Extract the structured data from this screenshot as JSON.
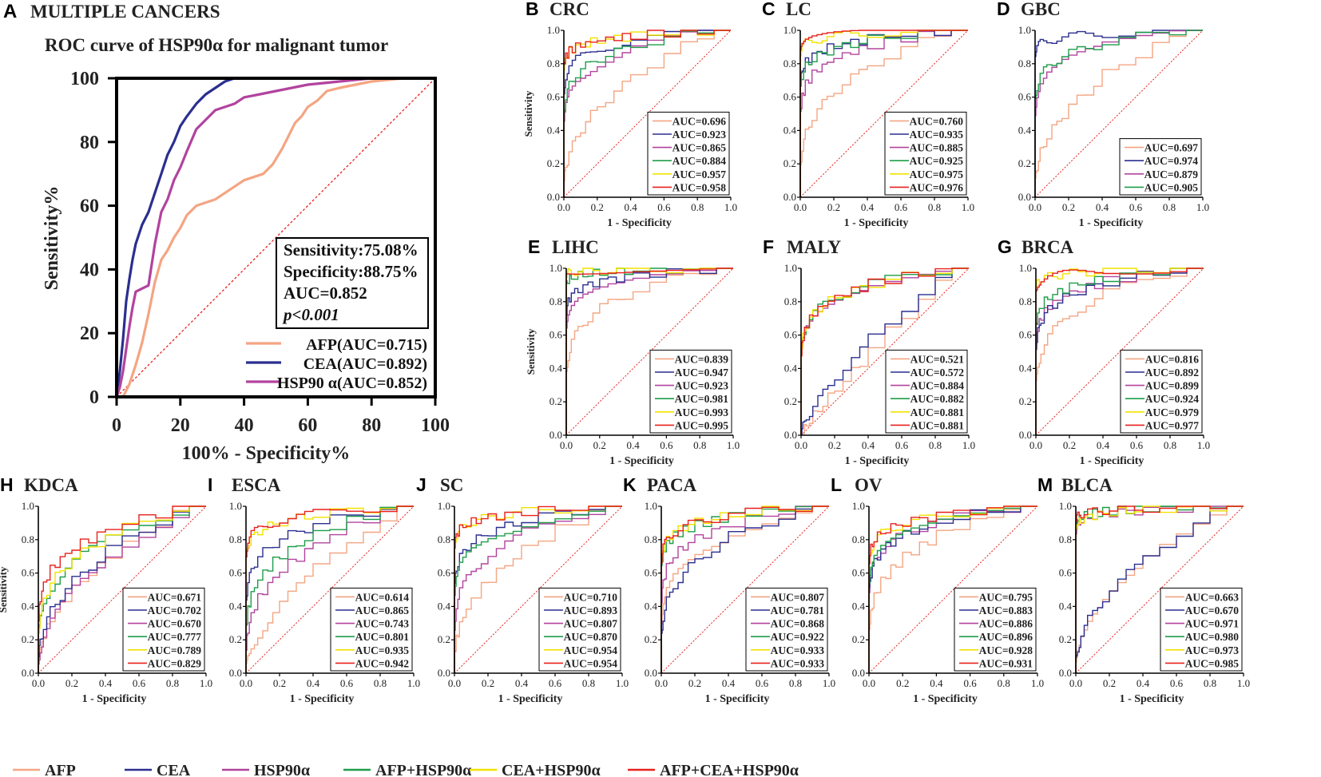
{
  "colors": {
    "AFP": "#F4A582",
    "CEA": "#2B2F8F",
    "HSP90a": "#B2439E",
    "AFP+HSP90a": "#1E9E4A",
    "CEA+HSP90a": "#F2E200",
    "AFP+CEA+HSP90a": "#E8211C",
    "diag": "#E8211C"
  },
  "legend": {
    "items": [
      {
        "key": "AFP",
        "label": "AFP"
      },
      {
        "key": "CEA",
        "label": "CEA"
      },
      {
        "key": "HSP90a",
        "label": "HSP90α"
      },
      {
        "key": "AFP+HSP90a",
        "label": "AFP+HSP90α"
      },
      {
        "key": "CEA+HSP90a",
        "label": "CEA+HSP90α"
      },
      {
        "key": "AFP+CEA+HSP90a",
        "label": "AFP+CEA+HSP90α"
      }
    ]
  },
  "chart_data": [
    {
      "id": "A",
      "letter": "A",
      "name": "MULTIPLE CANCERS",
      "type": "line",
      "title": "ROC curve of HSP90α  for malignant tumor",
      "xlabel": "100% - Specificity%",
      "ylabel": "Sensitivity%",
      "xlim": [
        0,
        100
      ],
      "ylim": [
        0,
        100
      ],
      "xticks": [
        "0",
        "20",
        "40",
        "60",
        "80",
        "100"
      ],
      "yticks": [
        "0",
        "20",
        "40",
        "60",
        "80",
        "100"
      ],
      "stats": [
        "Sensitivity:75.08%",
        "Specificity:88.75%",
        "AUC=0.852",
        "p<0.001"
      ],
      "series": [
        {
          "key": "AFP",
          "label": "AFP(AUC=0.715)",
          "auc": 0.715,
          "x": [
            0,
            2,
            4,
            6,
            8,
            10,
            12,
            14,
            16,
            18,
            20,
            22,
            25,
            28,
            31,
            34,
            37,
            40,
            43,
            46,
            49,
            52,
            54,
            56,
            58,
            60,
            63,
            66,
            70,
            75,
            80,
            85,
            90,
            95,
            100
          ],
          "y": [
            0,
            0,
            4,
            10,
            17,
            26,
            36,
            43,
            46,
            50,
            53,
            57,
            60,
            61,
            62,
            64,
            66,
            68,
            69,
            70,
            73,
            78,
            82,
            86,
            88,
            91,
            93,
            96,
            97,
            98,
            99,
            99.5,
            100,
            100,
            100
          ]
        },
        {
          "key": "CEA",
          "label": "CEA(AUC=0.892)",
          "auc": 0.892,
          "x": [
            0,
            1,
            2,
            3,
            4,
            5,
            6,
            8,
            10,
            12,
            14,
            16,
            18,
            20,
            22,
            25,
            28,
            31,
            34,
            37,
            40,
            45,
            50,
            60,
            70,
            80,
            90,
            100
          ],
          "y": [
            0,
            8,
            18,
            30,
            37,
            43,
            48,
            54,
            58,
            64,
            70,
            76,
            80,
            85,
            88,
            92,
            95,
            97,
            99,
            100,
            100,
            100,
            100,
            100,
            100,
            100,
            100,
            100
          ]
        },
        {
          "key": "HSP90a",
          "label": "HSP90 α(AUC=0.852)",
          "auc": 0.852,
          "x": [
            0,
            1,
            2,
            3,
            4,
            5,
            6,
            8,
            10,
            12,
            14,
            16,
            18,
            20,
            22,
            25,
            28,
            31,
            34,
            37,
            40,
            45,
            50,
            55,
            60,
            70,
            80,
            90,
            100
          ],
          "y": [
            0,
            3,
            8,
            15,
            22,
            28,
            33,
            34,
            35,
            48,
            58,
            62,
            68,
            72,
            77,
            84,
            87,
            90,
            91,
            92,
            94,
            95,
            96,
            97,
            98,
            99,
            100,
            100,
            100
          ]
        }
      ]
    },
    {
      "id": "B",
      "letter": "B",
      "name": "CRC",
      "type": "line",
      "xlabel": "1 - Specificity",
      "ylabel": "Sensitivity",
      "aucs": [
        "0.696",
        "0.923",
        "0.865",
        "0.884",
        "0.957",
        "0.958"
      ]
    },
    {
      "id": "C",
      "letter": "C",
      "name": "LC",
      "type": "line",
      "xlabel": "1 - Specificity",
      "ylabel": "",
      "aucs": [
        "0.760",
        "0.935",
        "0.885",
        "0.925",
        "0.975",
        "0.976"
      ]
    },
    {
      "id": "D",
      "letter": "D",
      "name": "GBC",
      "type": "line",
      "xlabel": "1 - Specificity",
      "ylabel": "",
      "aucs": [
        "0.697",
        "0.974",
        "0.879",
        "0.905"
      ]
    },
    {
      "id": "E",
      "letter": "E",
      "name": "LIHC",
      "type": "line",
      "xlabel": "1 - Specificity",
      "ylabel": "Sensitivity",
      "aucs": [
        "0.839",
        "0.947",
        "0.923",
        "0.981",
        "0.993",
        "0.995"
      ]
    },
    {
      "id": "F",
      "letter": "F",
      "name": "MALY",
      "type": "line",
      "xlabel": "1 - Specificity",
      "ylabel": "",
      "aucs": [
        "0.521",
        "0.572",
        "0.884",
        "0.882",
        "0.881",
        "0.881"
      ]
    },
    {
      "id": "G",
      "letter": "G",
      "name": "BRCA",
      "type": "line",
      "xlabel": "1 - Specificity",
      "ylabel": "",
      "aucs": [
        "0.816",
        "0.892",
        "0.899",
        "0.924",
        "0.979",
        "0.977"
      ]
    },
    {
      "id": "H",
      "letter": "H",
      "name": "KDCA",
      "type": "line",
      "xlabel": "1 - Specificity",
      "ylabel": "Sensitivity",
      "aucs": [
        "0.671",
        "0.702",
        "0.670",
        "0.777",
        "0.789",
        "0.829"
      ]
    },
    {
      "id": "I",
      "letter": "I",
      "name": "ESCA",
      "type": "line",
      "xlabel": "1 - Specificity",
      "ylabel": "",
      "aucs": [
        "0.614",
        "0.865",
        "0.743",
        "0.801",
        "0.935",
        "0.942"
      ]
    },
    {
      "id": "J",
      "letter": "J",
      "name": "SC",
      "type": "line",
      "xlabel": "1 - Specificity",
      "ylabel": "",
      "aucs": [
        "0.710",
        "0.893",
        "0.807",
        "0.870",
        "0.954",
        "0.954"
      ]
    },
    {
      "id": "K",
      "letter": "K",
      "name": "PACA",
      "type": "line",
      "xlabel": "1 - Specificity",
      "ylabel": "",
      "aucs": [
        "0.807",
        "0.781",
        "0.868",
        "0.922",
        "0.933",
        "0.933"
      ]
    },
    {
      "id": "L",
      "letter": "L",
      "name": "OV",
      "type": "line",
      "xlabel": "1 - Specificity",
      "ylabel": "",
      "aucs": [
        "0.795",
        "0.883",
        "0.886",
        "0.896",
        "0.928",
        "0.931"
      ]
    },
    {
      "id": "M",
      "letter": "M",
      "name": "BLCA",
      "type": "line",
      "xlabel": "1 - Specificity",
      "ylabel": "",
      "aucs": [
        "0.663",
        "0.670",
        "0.971",
        "0.980",
        "0.973",
        "0.985"
      ]
    }
  ],
  "small_ticks": [
    "0.0",
    "0.2",
    "0.4",
    "0.6",
    "0.8",
    "1.0"
  ],
  "auc_prefix": "AUC="
}
